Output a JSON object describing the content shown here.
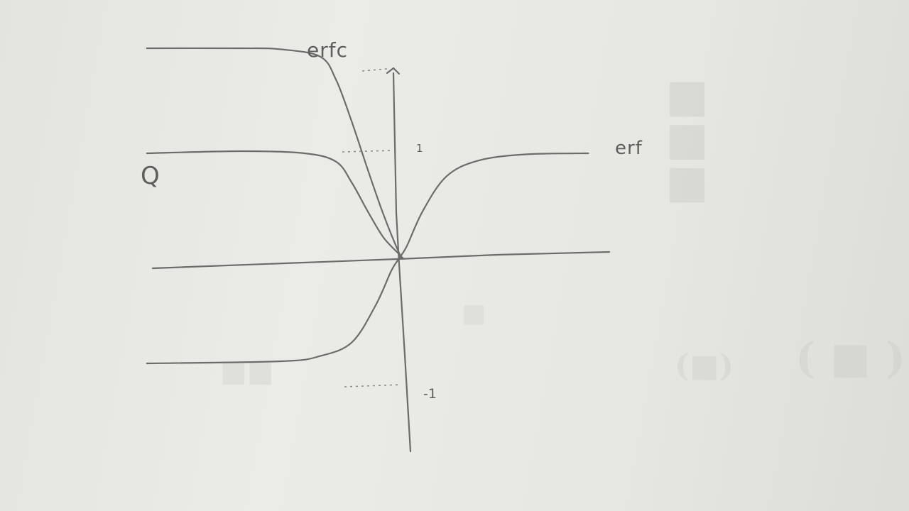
{
  "chart_data": {
    "type": "line",
    "title": "",
    "xlabel": "",
    "ylabel": "",
    "xlim": [
      -3.2,
      2.6
    ],
    "ylim": [
      -1.07,
      2.06
    ],
    "grid": false,
    "y_tick_labels": [
      "1",
      "-1"
    ],
    "y_ticks": [
      1,
      -1
    ],
    "series": [
      {
        "name": "erfc",
        "x": [
          -3.2,
          -2.0,
          -1.5,
          -1.0,
          -0.8,
          -0.6,
          -0.4,
          -0.2,
          0.0,
          0.05
        ],
        "y": [
          2.0,
          2.0,
          1.99,
          1.92,
          1.7,
          1.3,
          0.85,
          0.42,
          0.05,
          0.0
        ]
      },
      {
        "name": "Q",
        "x": [
          -3.2,
          -2.0,
          -1.2,
          -0.8,
          -0.6,
          -0.4,
          -0.2,
          0.0,
          0.05
        ],
        "y": [
          1.0,
          1.02,
          1.0,
          0.92,
          0.72,
          0.45,
          0.2,
          0.04,
          0.0
        ]
      },
      {
        "name": "erf",
        "x": [
          -3.2,
          -1.5,
          -1.0,
          -0.6,
          -0.3,
          -0.1,
          0.0,
          0.1,
          0.3,
          0.6,
          1.0,
          1.6,
          2.4
        ],
        "y": [
          -1.0,
          -0.98,
          -0.93,
          -0.8,
          -0.45,
          -0.12,
          0.0,
          0.12,
          0.45,
          0.78,
          0.93,
          0.99,
          1.0
        ]
      }
    ]
  },
  "labels": {
    "erfc": "erfc",
    "erf": "erf",
    "q": "Q",
    "tick_pos_one": "1",
    "tick_neg_one": "-1"
  }
}
